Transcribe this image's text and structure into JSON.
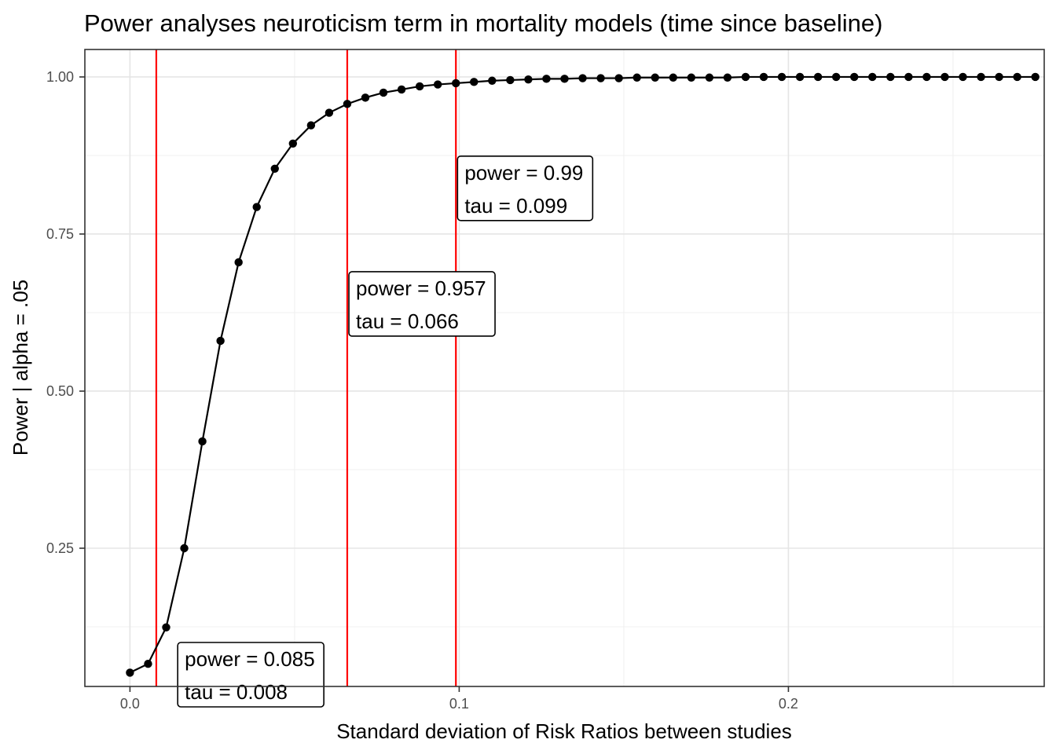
{
  "chart_data": {
    "type": "line",
    "title": "Power analyses neuroticism term in mortality models (time since baseline)",
    "xlabel": "Standard deviation of Risk Ratios between studies",
    "ylabel": "Power | alpha = .05",
    "xlim": [
      -0.0137,
      0.2777
    ],
    "ylim": [
      0.03,
      1.0437
    ],
    "x_ticks": [
      0.0,
      0.1,
      0.2
    ],
    "x_tick_labels": [
      "0.0",
      "0.1",
      "0.2"
    ],
    "x_minor_ticks": [
      0.05,
      0.15,
      0.25
    ],
    "y_ticks": [
      0.25,
      0.5,
      0.75,
      1.0
    ],
    "y_tick_labels": [
      "0.25",
      "0.50",
      "0.75",
      "1.00"
    ],
    "y_minor_ticks": [
      0.125,
      0.375,
      0.625,
      0.875
    ],
    "grid": true,
    "line_color": "#000000",
    "vline_color": "#ff0000",
    "series": [
      {
        "x": [
          0.0,
          0.0055,
          0.011,
          0.0165,
          0.022,
          0.0275,
          0.033,
          0.0385,
          0.044,
          0.0495,
          0.055,
          0.0605,
          0.066,
          0.0715,
          0.077,
          0.0825,
          0.088,
          0.0935,
          0.099,
          0.1045,
          0.11,
          0.1155,
          0.121,
          0.1265,
          0.132,
          0.1375,
          0.143,
          0.1485,
          0.154,
          0.1595,
          0.165,
          0.1705,
          0.176,
          0.1815,
          0.187,
          0.1925,
          0.198,
          0.2035,
          0.209,
          0.2145,
          0.22,
          0.2255,
          0.231,
          0.2365,
          0.242,
          0.2475,
          0.253,
          0.2585,
          0.264,
          0.2695,
          0.275
        ],
        "values": [
          0.052,
          0.066,
          0.124,
          0.25,
          0.42,
          0.58,
          0.705,
          0.793,
          0.854,
          0.894,
          0.923,
          0.943,
          0.957,
          0.967,
          0.975,
          0.98,
          0.985,
          0.988,
          0.99,
          0.992,
          0.994,
          0.995,
          0.996,
          0.997,
          0.997,
          0.998,
          0.998,
          0.998,
          0.999,
          0.999,
          0.999,
          0.999,
          0.999,
          0.999,
          1.0,
          1.0,
          1.0,
          1.0,
          1.0,
          1.0,
          1.0,
          1.0,
          1.0,
          1.0,
          1.0,
          1.0,
          1.0,
          1.0,
          1.0,
          1.0,
          1.0
        ]
      }
    ],
    "vlines": [
      0.008,
      0.066,
      0.099
    ],
    "annotations": [
      {
        "x": 0.0145,
        "y": 0.1,
        "line1": "power = 0.085",
        "line2": "tau =  0.008"
      },
      {
        "x": 0.0665,
        "y": 0.69,
        "line1": "power = 0.957",
        "line2": "tau =  0.066"
      },
      {
        "x": 0.0995,
        "y": 0.874,
        "line1": "power = 0.99",
        "line2": "tau =  0.099"
      }
    ]
  }
}
